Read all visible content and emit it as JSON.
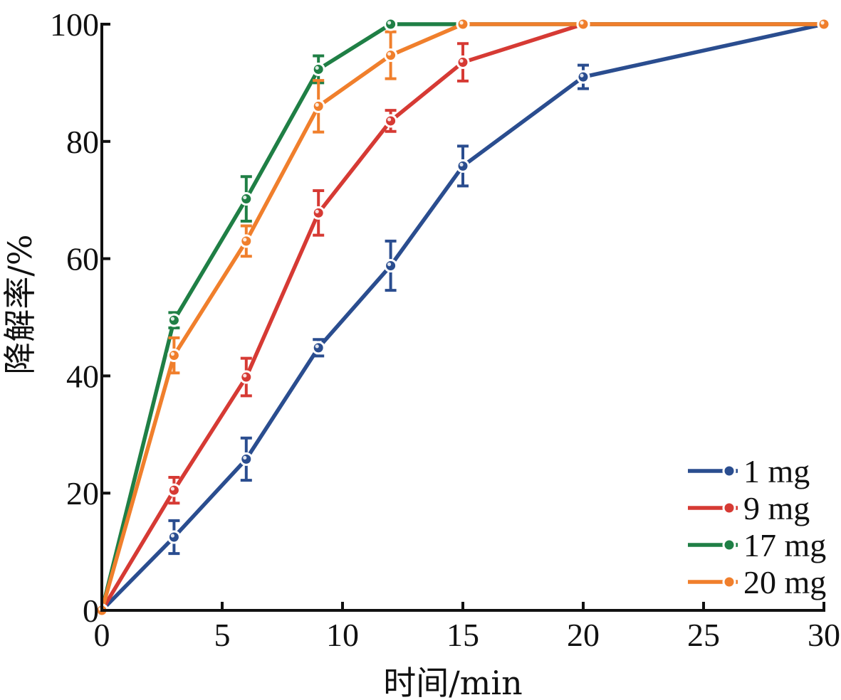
{
  "chart_data": {
    "type": "line",
    "xlabel": "时间/min",
    "ylabel": "降解率/%",
    "xlim": [
      0,
      30
    ],
    "ylim": [
      0,
      100
    ],
    "x_ticks": [
      0,
      5,
      10,
      15,
      20,
      25,
      30
    ],
    "y_ticks": [
      0,
      20,
      40,
      60,
      80,
      100
    ],
    "grid": false,
    "legend_position": "bottom-right",
    "series": [
      {
        "name": "1 mg",
        "color": "#2a4d8f",
        "x": [
          0,
          3,
          6,
          9,
          12,
          15,
          20,
          30
        ],
        "y": [
          0,
          12.5,
          25.8,
          44.8,
          58.8,
          75.8,
          91,
          100
        ],
        "err": [
          0,
          2.8,
          3.6,
          1.4,
          4.2,
          3.4,
          2,
          0
        ]
      },
      {
        "name": "9 mg",
        "color": "#d63a34",
        "x": [
          0,
          3,
          6,
          9,
          12,
          15,
          20,
          30
        ],
        "y": [
          0,
          20.5,
          39.8,
          67.8,
          83.5,
          93.5,
          100,
          100
        ],
        "err": [
          0,
          2.2,
          3.2,
          3.8,
          1.8,
          3.2,
          0,
          0
        ]
      },
      {
        "name": "17 mg",
        "color": "#1f7f45",
        "x": [
          0,
          3,
          6,
          9,
          12,
          15,
          20,
          30
        ],
        "y": [
          0,
          49.5,
          70.2,
          92.3,
          100,
          100,
          100,
          100
        ],
        "err": [
          0,
          1.3,
          3.8,
          2.3,
          0,
          0,
          0,
          0
        ]
      },
      {
        "name": "20 mg",
        "color": "#f07f2c",
        "x": [
          0,
          3,
          6,
          9,
          12,
          15,
          20,
          30
        ],
        "y": [
          0,
          43.5,
          63,
          86,
          94.7,
          100,
          100,
          100
        ],
        "err": [
          0,
          3,
          2.6,
          4.4,
          4,
          0,
          0,
          0
        ]
      }
    ]
  }
}
